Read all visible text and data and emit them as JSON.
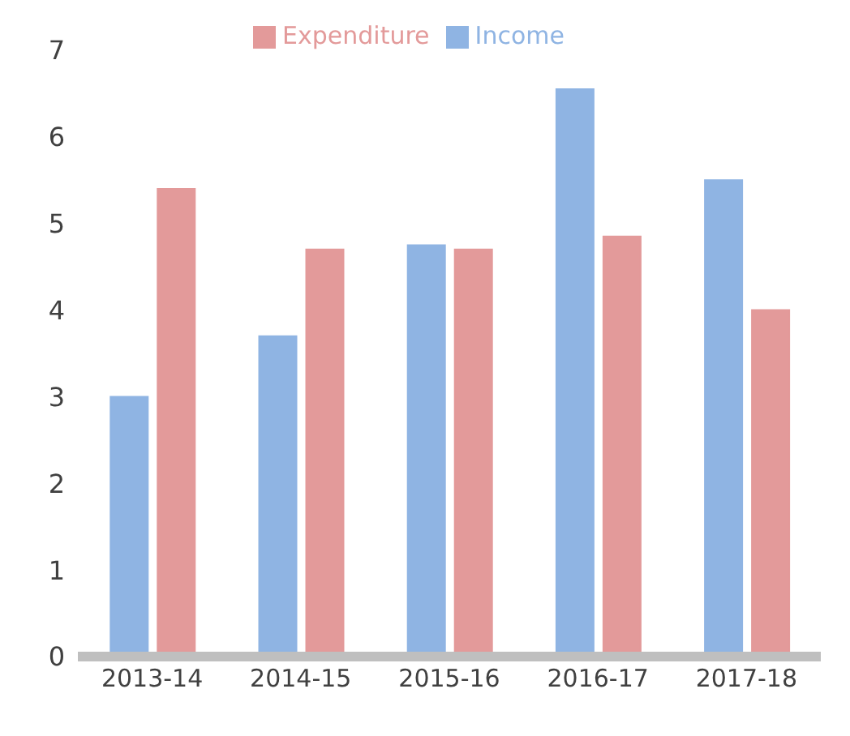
{
  "chart_data": {
    "type": "bar",
    "categories": [
      "2013-14",
      "2014-15",
      "2015-16",
      "2016-17",
      "2017-18"
    ],
    "series": [
      {
        "name": "Income",
        "color": "#8fb4e3",
        "values": [
          3.0,
          3.7,
          4.75,
          6.55,
          5.5
        ]
      },
      {
        "name": "Expenditure",
        "color": "#e39a9a",
        "values": [
          5.4,
          4.7,
          4.7,
          4.85,
          4.0
        ]
      }
    ],
    "ylim": [
      0,
      7
    ],
    "yticks": [
      0,
      1,
      2,
      3,
      4,
      5,
      6,
      7
    ],
    "grid": false,
    "legend": "top"
  }
}
